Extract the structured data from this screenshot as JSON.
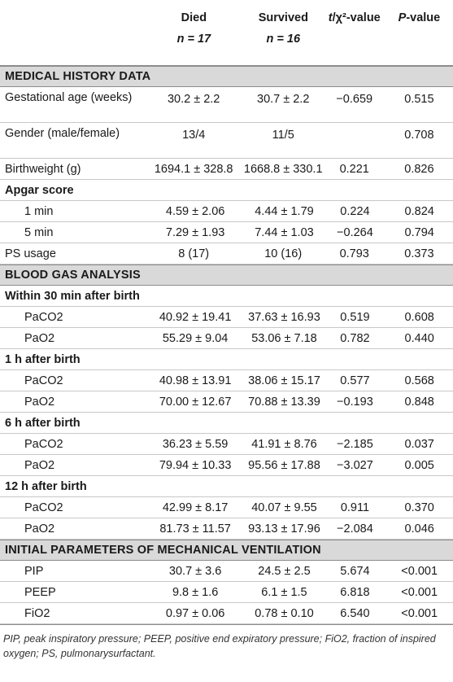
{
  "header": {
    "col1_title": "Died",
    "col1_n": "n = 17",
    "col2_title": "Survived",
    "col2_n": "n = 16",
    "col3": "t/χ²-value",
    "col4": "P-value"
  },
  "sections": {
    "medical": "MEDICAL HISTORY DATA",
    "blood": "BLOOD GAS ANALYSIS",
    "initial": "INITIAL PARAMETERS OF MECHANICAL VENTILATION"
  },
  "medical_rows": [
    {
      "label": "Gestational age (weeks)",
      "died": "30.2 ± 2.2",
      "survived": "30.7 ± 2.2",
      "t": "−0.659",
      "p": "0.515"
    },
    {
      "label": "Gender (male/female)",
      "died": "13/4",
      "survived": "11/5",
      "t": "",
      "p": "0.708"
    },
    {
      "label": "Birthweight (g)",
      "died": "1694.1 ± 328.8",
      "survived": "1668.8 ± 330.1",
      "t": "0.221",
      "p": "0.826"
    }
  ],
  "apgar": {
    "label": "Apgar score",
    "rows": [
      {
        "label": "1 min",
        "died": "4.59 ± 2.06",
        "survived": "4.44 ± 1.79",
        "t": "0.224",
        "p": "0.824"
      },
      {
        "label": "5 min",
        "died": "7.29 ± 1.93",
        "survived": "7.44 ± 1.03",
        "t": "−0.264",
        "p": "0.794"
      }
    ]
  },
  "ps_usage": {
    "label": "PS usage",
    "died": "8 (17)",
    "survived": "10 (16)",
    "t": "0.793",
    "p": "0.373"
  },
  "blood_groups": [
    {
      "label": "Within 30 min after birth",
      "rows": [
        {
          "label": "PaCO2",
          "died": "40.92 ± 19.41",
          "survived": "37.63 ± 16.93",
          "t": "0.519",
          "p": "0.608"
        },
        {
          "label": "PaO2",
          "died": "55.29 ± 9.04",
          "survived": "53.06 ± 7.18",
          "t": "0.782",
          "p": "0.440"
        }
      ]
    },
    {
      "label": "1 h after birth",
      "rows": [
        {
          "label": "PaCO2",
          "died": "40.98 ± 13.91",
          "survived": "38.06 ± 15.17",
          "t": "0.577",
          "p": "0.568"
        },
        {
          "label": "PaO2",
          "died": "70.00 ± 12.67",
          "survived": "70.88 ± 13.39",
          "t": "−0.193",
          "p": "0.848"
        }
      ]
    },
    {
      "label": "6 h after birth",
      "rows": [
        {
          "label": "PaCO2",
          "died": "36.23 ± 5.59",
          "survived": "41.91 ± 8.76",
          "t": "−2.185",
          "p": "0.037"
        },
        {
          "label": "PaO2",
          "died": "79.94 ± 10.33",
          "survived": "95.56 ± 17.88",
          "t": "−3.027",
          "p": "0.005"
        }
      ]
    },
    {
      "label": "12 h after birth",
      "rows": [
        {
          "label": "PaCO2",
          "died": "42.99 ± 8.17",
          "survived": "40.07 ± 9.55",
          "t": "0.911",
          "p": "0.370"
        },
        {
          "label": "PaO2",
          "died": "81.73 ± 11.57",
          "survived": "93.13 ± 17.96",
          "t": "−2.084",
          "p": "0.046"
        }
      ]
    }
  ],
  "initial_rows": [
    {
      "label": "PIP",
      "died": "30.7 ± 3.6",
      "survived": "24.5 ± 2.5",
      "t": "5.674",
      "p": "<0.001"
    },
    {
      "label": "PEEP",
      "died": "9.8 ± 1.6",
      "survived": "6.1 ± 1.5",
      "t": "6.818",
      "p": "<0.001"
    },
    {
      "label": "FiO2",
      "died": "0.97 ± 0.06",
      "survived": "0.78 ± 0.10",
      "t": "6.540",
      "p": "<0.001"
    }
  ],
  "footnote": "PIP, peak inspiratory pressure; PEEP, positive end expiratory pressure; FiO2, fraction of inspired oxygen; PS, pulmonarysurfactant."
}
